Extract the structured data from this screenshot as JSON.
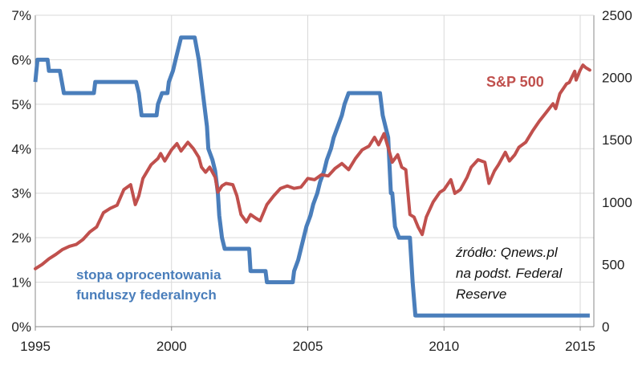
{
  "chart_data": {
    "type": "line",
    "title": "",
    "xlabel": "",
    "ylabel": "",
    "xlim": [
      1995,
      2015.5
    ],
    "ylim_left": [
      0,
      7
    ],
    "ylim_right": [
      0,
      2500
    ],
    "grid": true,
    "legend": "inline labels",
    "x_tick_labels": [
      "1995",
      "2000",
      "2005",
      "2010",
      "2015"
    ],
    "x_ticks": [
      1995,
      2000,
      2005,
      2010,
      2015
    ],
    "y_left_tick_labels": [
      "0%",
      "1%",
      "2%",
      "3%",
      "4%",
      "5%",
      "6%",
      "7%"
    ],
    "y_left_ticks": [
      0,
      1,
      2,
      3,
      4,
      5,
      6,
      7
    ],
    "y_right_tick_labels": [
      "0",
      "500",
      "1000",
      "1500",
      "2000",
      "2500"
    ],
    "y_right_ticks": [
      0,
      500,
      1000,
      1500,
      2000,
      2500
    ],
    "series": [
      {
        "name": "stopa oprocentowania funduszy federalnych",
        "label_lines": [
          "stopa oprocentowania",
          "funduszy federalnych"
        ],
        "axis": "left",
        "color": "#4a7ebb",
        "points": [
          [
            1995.0,
            5.5
          ],
          [
            1995.08,
            6.0
          ],
          [
            1995.45,
            6.0
          ],
          [
            1995.5,
            5.75
          ],
          [
            1995.9,
            5.75
          ],
          [
            1996.05,
            5.25
          ],
          [
            1997.15,
            5.25
          ],
          [
            1997.2,
            5.5
          ],
          [
            1998.7,
            5.5
          ],
          [
            1998.8,
            5.25
          ],
          [
            1998.85,
            5.0
          ],
          [
            1998.9,
            4.75
          ],
          [
            1999.45,
            4.75
          ],
          [
            1999.5,
            5.0
          ],
          [
            1999.65,
            5.25
          ],
          [
            1999.85,
            5.25
          ],
          [
            1999.9,
            5.5
          ],
          [
            2000.05,
            5.75
          ],
          [
            2000.15,
            6.0
          ],
          [
            2000.35,
            6.5
          ],
          [
            2000.85,
            6.5
          ],
          [
            2001.0,
            6.0
          ],
          [
            2001.1,
            5.5
          ],
          [
            2001.2,
            5.0
          ],
          [
            2001.3,
            4.5
          ],
          [
            2001.35,
            4.0
          ],
          [
            2001.5,
            3.75
          ],
          [
            2001.6,
            3.5
          ],
          [
            2001.7,
            3.0
          ],
          [
            2001.75,
            2.5
          ],
          [
            2001.85,
            2.0
          ],
          [
            2001.95,
            1.75
          ],
          [
            2002.85,
            1.75
          ],
          [
            2002.9,
            1.25
          ],
          [
            2003.45,
            1.25
          ],
          [
            2003.5,
            1.0
          ],
          [
            2004.45,
            1.0
          ],
          [
            2004.5,
            1.25
          ],
          [
            2004.65,
            1.5
          ],
          [
            2004.75,
            1.75
          ],
          [
            2004.85,
            2.0
          ],
          [
            2004.95,
            2.25
          ],
          [
            2005.1,
            2.5
          ],
          [
            2005.2,
            2.75
          ],
          [
            2005.35,
            3.0
          ],
          [
            2005.45,
            3.25
          ],
          [
            2005.6,
            3.5
          ],
          [
            2005.7,
            3.75
          ],
          [
            2005.85,
            4.0
          ],
          [
            2005.95,
            4.25
          ],
          [
            2006.1,
            4.5
          ],
          [
            2006.25,
            4.75
          ],
          [
            2006.35,
            5.0
          ],
          [
            2006.5,
            5.25
          ],
          [
            2007.65,
            5.25
          ],
          [
            2007.75,
            4.75
          ],
          [
            2007.85,
            4.5
          ],
          [
            2007.95,
            4.25
          ],
          [
            2008.05,
            3.0
          ],
          [
            2008.1,
            3.0
          ],
          [
            2008.2,
            2.25
          ],
          [
            2008.35,
            2.0
          ],
          [
            2008.75,
            2.0
          ],
          [
            2008.8,
            1.5
          ],
          [
            2008.85,
            1.0
          ],
          [
            2008.95,
            0.25
          ],
          [
            2015.35,
            0.25
          ]
        ]
      },
      {
        "name": "S&P 500",
        "axis": "right",
        "color": "#c0504d",
        "points": [
          [
            1995.0,
            465
          ],
          [
            1995.25,
            500
          ],
          [
            1995.5,
            545
          ],
          [
            1995.75,
            580
          ],
          [
            1996.0,
            620
          ],
          [
            1996.25,
            645
          ],
          [
            1996.5,
            660
          ],
          [
            1996.75,
            700
          ],
          [
            1997.0,
            760
          ],
          [
            1997.25,
            800
          ],
          [
            1997.5,
            915
          ],
          [
            1997.75,
            950
          ],
          [
            1998.0,
            975
          ],
          [
            1998.25,
            1100
          ],
          [
            1998.5,
            1140
          ],
          [
            1998.67,
            980
          ],
          [
            1998.8,
            1050
          ],
          [
            1998.95,
            1190
          ],
          [
            1999.25,
            1300
          ],
          [
            1999.5,
            1350
          ],
          [
            1999.6,
            1390
          ],
          [
            1999.75,
            1330
          ],
          [
            2000.0,
            1420
          ],
          [
            2000.2,
            1470
          ],
          [
            2000.35,
            1410
          ],
          [
            2000.6,
            1480
          ],
          [
            2000.8,
            1430
          ],
          [
            2001.0,
            1360
          ],
          [
            2001.1,
            1280
          ],
          [
            2001.25,
            1240
          ],
          [
            2001.4,
            1280
          ],
          [
            2001.6,
            1200
          ],
          [
            2001.7,
            1080
          ],
          [
            2001.85,
            1130
          ],
          [
            2002.0,
            1150
          ],
          [
            2002.25,
            1140
          ],
          [
            2002.4,
            1050
          ],
          [
            2002.55,
            900
          ],
          [
            2002.75,
            840
          ],
          [
            2002.9,
            900
          ],
          [
            2003.1,
            870
          ],
          [
            2003.25,
            850
          ],
          [
            2003.5,
            980
          ],
          [
            2003.75,
            1050
          ],
          [
            2004.0,
            1110
          ],
          [
            2004.25,
            1130
          ],
          [
            2004.5,
            1110
          ],
          [
            2004.75,
            1120
          ],
          [
            2005.0,
            1190
          ],
          [
            2005.25,
            1180
          ],
          [
            2005.5,
            1220
          ],
          [
            2005.75,
            1210
          ],
          [
            2006.0,
            1270
          ],
          [
            2006.25,
            1310
          ],
          [
            2006.5,
            1260
          ],
          [
            2006.75,
            1350
          ],
          [
            2007.0,
            1420
          ],
          [
            2007.25,
            1450
          ],
          [
            2007.45,
            1520
          ],
          [
            2007.6,
            1460
          ],
          [
            2007.8,
            1550
          ],
          [
            2008.0,
            1400
          ],
          [
            2008.1,
            1320
          ],
          [
            2008.3,
            1380
          ],
          [
            2008.45,
            1280
          ],
          [
            2008.6,
            1260
          ],
          [
            2008.75,
            900
          ],
          [
            2008.9,
            880
          ],
          [
            2009.05,
            800
          ],
          [
            2009.2,
            740
          ],
          [
            2009.35,
            880
          ],
          [
            2009.6,
            1000
          ],
          [
            2009.85,
            1080
          ],
          [
            2010.0,
            1100
          ],
          [
            2010.25,
            1180
          ],
          [
            2010.4,
            1070
          ],
          [
            2010.6,
            1100
          ],
          [
            2010.85,
            1200
          ],
          [
            2011.0,
            1280
          ],
          [
            2011.25,
            1340
          ],
          [
            2011.5,
            1320
          ],
          [
            2011.65,
            1150
          ],
          [
            2011.85,
            1250
          ],
          [
            2012.0,
            1300
          ],
          [
            2012.25,
            1400
          ],
          [
            2012.4,
            1330
          ],
          [
            2012.6,
            1380
          ],
          [
            2012.75,
            1440
          ],
          [
            2013.0,
            1480
          ],
          [
            2013.25,
            1570
          ],
          [
            2013.5,
            1650
          ],
          [
            2013.75,
            1720
          ],
          [
            2014.0,
            1790
          ],
          [
            2014.1,
            1750
          ],
          [
            2014.25,
            1870
          ],
          [
            2014.5,
            1950
          ],
          [
            2014.6,
            1960
          ],
          [
            2014.8,
            2050
          ],
          [
            2014.85,
            1980
          ],
          [
            2015.0,
            2060
          ],
          [
            2015.1,
            2100
          ],
          [
            2015.2,
            2080
          ],
          [
            2015.35,
            2060
          ]
        ]
      }
    ],
    "annotations": [
      {
        "lines": [
          "źródło: Qnews.pl",
          "na podst. Federal",
          "Reserve"
        ]
      }
    ]
  }
}
